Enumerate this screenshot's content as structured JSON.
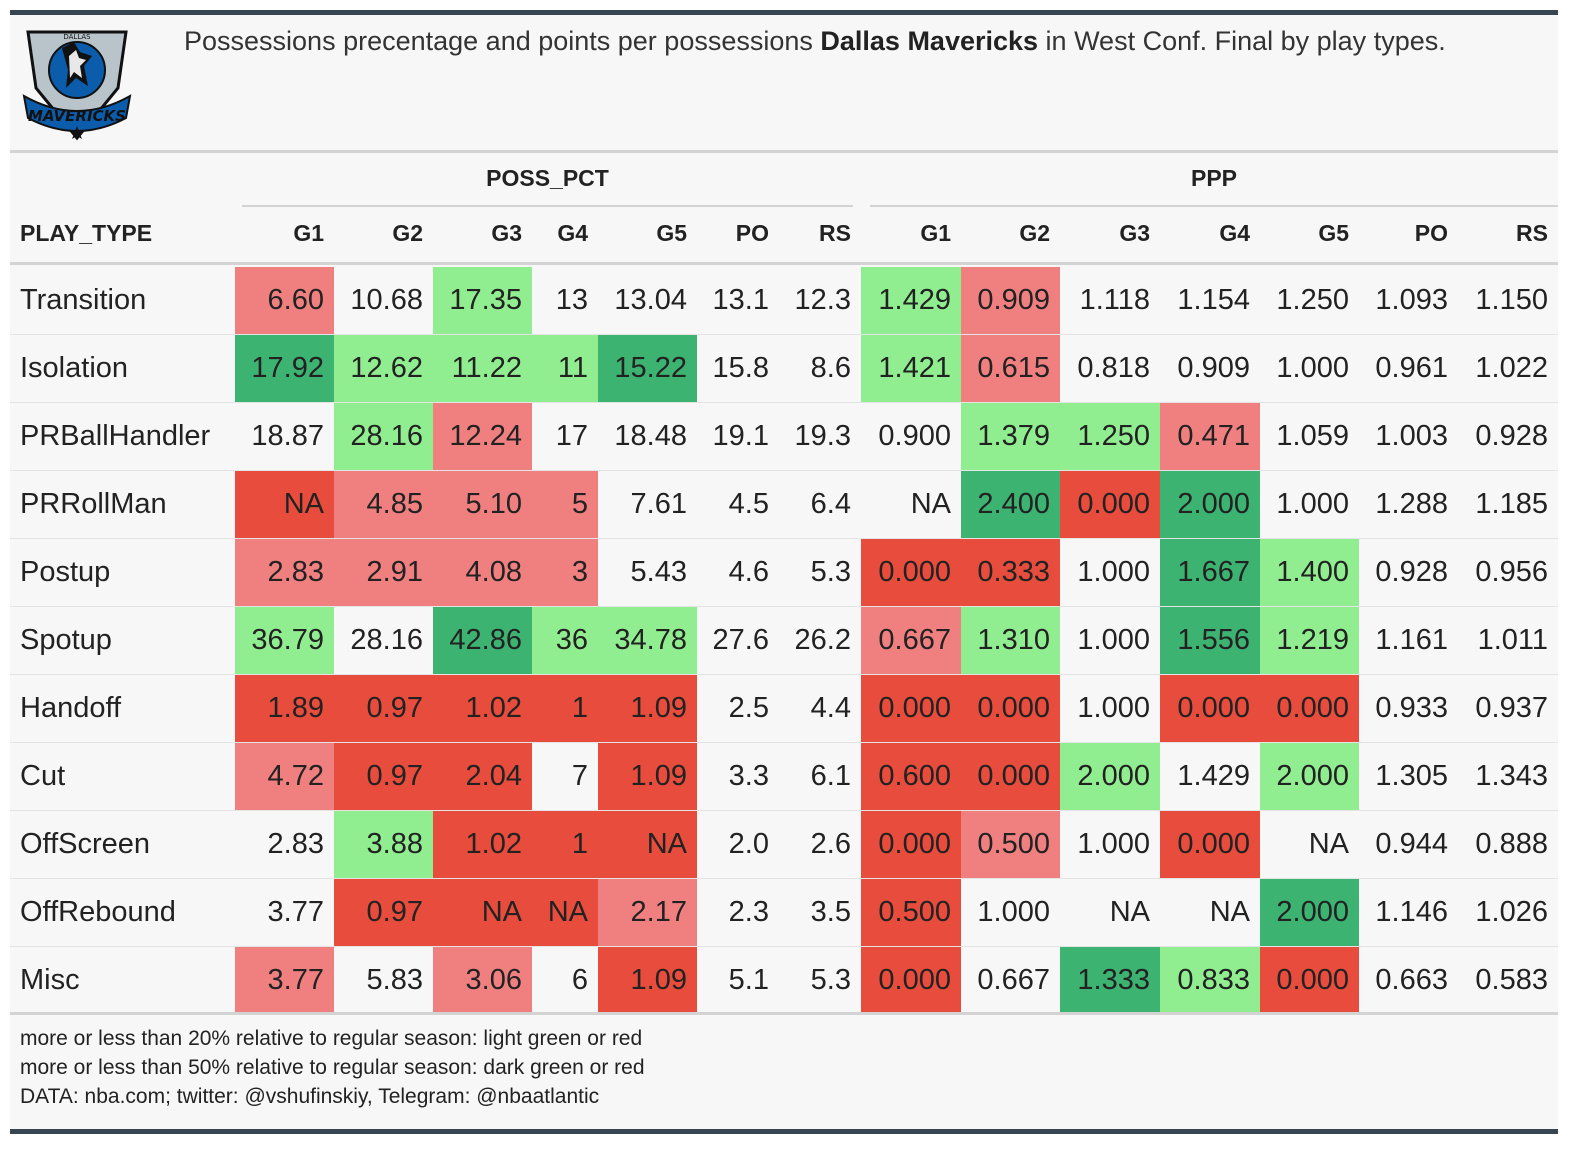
{
  "title": {
    "prefix": "Possessions precentage and points per possessions ",
    "team": "Dallas Mavericks",
    "suffix": " in West Conf. Final by play types."
  },
  "logo": {
    "wordmark": "MAVERICKS",
    "top_text": "DALLAS"
  },
  "colors": {
    "light_green": "#90ee90",
    "dark_green": "#3cb371",
    "light_red": "#f08080",
    "dark_red": "#e74c3c",
    "neutral": "#ffffff",
    "rule": "#36454f"
  },
  "chart_data": {
    "type": "table",
    "row_header": "PLAY_TYPE",
    "groups": [
      {
        "name": "POSS_PCT",
        "columns": [
          "G1",
          "G2",
          "G3",
          "G4",
          "G5",
          "PO",
          "RS"
        ]
      },
      {
        "name": "PPP",
        "columns": [
          "G1",
          "G2",
          "G3",
          "G4",
          "G5",
          "PO",
          "RS"
        ]
      }
    ],
    "rows": [
      {
        "play_type": "Transition",
        "poss_pct": [
          "6.60",
          "10.68",
          "17.35",
          "13",
          "13.04",
          "13.1",
          "12.3"
        ],
        "ppp": [
          "1.429",
          "0.909",
          "1.118",
          "1.154",
          "1.250",
          "1.093",
          "1.150"
        ],
        "poss_fill": [
          "lr",
          "",
          "lg",
          "",
          "",
          "",
          ""
        ],
        "ppp_fill": [
          "lg",
          "lr",
          "",
          "",
          "",
          "",
          ""
        ]
      },
      {
        "play_type": "Isolation",
        "poss_pct": [
          "17.92",
          "12.62",
          "11.22",
          "11",
          "15.22",
          "15.8",
          "8.6"
        ],
        "ppp": [
          "1.421",
          "0.615",
          "0.818",
          "0.909",
          "1.000",
          "0.961",
          "1.022"
        ],
        "poss_fill": [
          "dg",
          "lg",
          "lg",
          "lg",
          "dg",
          "",
          ""
        ],
        "ppp_fill": [
          "lg",
          "lr",
          "",
          "",
          "",
          "",
          ""
        ]
      },
      {
        "play_type": "PRBallHandler",
        "poss_pct": [
          "18.87",
          "28.16",
          "12.24",
          "17",
          "18.48",
          "19.1",
          "19.3"
        ],
        "ppp": [
          "0.900",
          "1.379",
          "1.250",
          "0.471",
          "1.059",
          "1.003",
          "0.928"
        ],
        "poss_fill": [
          "",
          "lg",
          "lr",
          "",
          "",
          "",
          ""
        ],
        "ppp_fill": [
          "",
          "lg",
          "lg",
          "lr",
          "",
          "",
          ""
        ]
      },
      {
        "play_type": "PRRollMan",
        "poss_pct": [
          "NA",
          "4.85",
          "5.10",
          "5",
          "7.61",
          "4.5",
          "6.4"
        ],
        "ppp": [
          "NA",
          "2.400",
          "0.000",
          "2.000",
          "1.000",
          "1.288",
          "1.185"
        ],
        "poss_fill": [
          "dr",
          "lr",
          "lr",
          "lr",
          "",
          "",
          ""
        ],
        "ppp_fill": [
          "",
          "dg",
          "dr",
          "dg",
          "",
          "",
          ""
        ]
      },
      {
        "play_type": "Postup",
        "poss_pct": [
          "2.83",
          "2.91",
          "4.08",
          "3",
          "5.43",
          "4.6",
          "5.3"
        ],
        "ppp": [
          "0.000",
          "0.333",
          "1.000",
          "1.667",
          "1.400",
          "0.928",
          "0.956"
        ],
        "poss_fill": [
          "lr",
          "lr",
          "lr",
          "lr",
          "",
          "",
          ""
        ],
        "ppp_fill": [
          "dr",
          "dr",
          "",
          "dg",
          "lg",
          "",
          ""
        ]
      },
      {
        "play_type": "Spotup",
        "poss_pct": [
          "36.79",
          "28.16",
          "42.86",
          "36",
          "34.78",
          "27.6",
          "26.2"
        ],
        "ppp": [
          "0.667",
          "1.310",
          "1.000",
          "1.556",
          "1.219",
          "1.161",
          "1.011"
        ],
        "poss_fill": [
          "lg",
          "",
          "dg",
          "lg",
          "lg",
          "",
          ""
        ],
        "ppp_fill": [
          "lr",
          "lg",
          "",
          "dg",
          "lg",
          "",
          ""
        ]
      },
      {
        "play_type": "Handoff",
        "poss_pct": [
          "1.89",
          "0.97",
          "1.02",
          "1",
          "1.09",
          "2.5",
          "4.4"
        ],
        "ppp": [
          "0.000",
          "0.000",
          "1.000",
          "0.000",
          "0.000",
          "0.933",
          "0.937"
        ],
        "poss_fill": [
          "dr",
          "dr",
          "dr",
          "dr",
          "dr",
          "",
          ""
        ],
        "ppp_fill": [
          "dr",
          "dr",
          "",
          "dr",
          "dr",
          "",
          ""
        ]
      },
      {
        "play_type": "Cut",
        "poss_pct": [
          "4.72",
          "0.97",
          "2.04",
          "7",
          "1.09",
          "3.3",
          "6.1"
        ],
        "ppp": [
          "0.600",
          "0.000",
          "2.000",
          "1.429",
          "2.000",
          "1.305",
          "1.343"
        ],
        "poss_fill": [
          "lr",
          "dr",
          "dr",
          "",
          "dr",
          "",
          ""
        ],
        "ppp_fill": [
          "dr",
          "dr",
          "lg",
          "",
          "lg",
          "",
          ""
        ]
      },
      {
        "play_type": "OffScreen",
        "poss_pct": [
          "2.83",
          "3.88",
          "1.02",
          "1",
          "NA",
          "2.0",
          "2.6"
        ],
        "ppp": [
          "0.000",
          "0.500",
          "1.000",
          "0.000",
          "NA",
          "0.944",
          "0.888"
        ],
        "poss_fill": [
          "",
          "lg",
          "dr",
          "dr",
          "dr",
          "",
          ""
        ],
        "ppp_fill": [
          "dr",
          "lr",
          "",
          "dr",
          "",
          "",
          ""
        ]
      },
      {
        "play_type": "OffRebound",
        "poss_pct": [
          "3.77",
          "0.97",
          "NA",
          "NA",
          "2.17",
          "2.3",
          "3.5"
        ],
        "ppp": [
          "0.500",
          "1.000",
          "NA",
          "NA",
          "2.000",
          "1.146",
          "1.026"
        ],
        "poss_fill": [
          "",
          "dr",
          "dr",
          "dr",
          "lr",
          "",
          ""
        ],
        "ppp_fill": [
          "dr",
          "",
          "",
          "",
          "dg",
          "",
          ""
        ]
      },
      {
        "play_type": "Misc",
        "poss_pct": [
          "3.77",
          "5.83",
          "3.06",
          "6",
          "1.09",
          "5.1",
          "5.3"
        ],
        "ppp": [
          "0.000",
          "0.667",
          "1.333",
          "0.833",
          "0.000",
          "0.663",
          "0.583"
        ],
        "poss_fill": [
          "lr",
          "",
          "lr",
          "",
          "dr",
          "",
          ""
        ],
        "ppp_fill": [
          "dr",
          "",
          "dg",
          "lg",
          "dr",
          "",
          ""
        ]
      }
    ]
  },
  "notes": [
    "more or less than 20% relative to regular season: light green or red",
    "more or less than 50% relative to regular season: dark green or red",
    "DATA: nba.com; twitter: @vshufinskiy, Telegram: @nbaatlantic"
  ]
}
